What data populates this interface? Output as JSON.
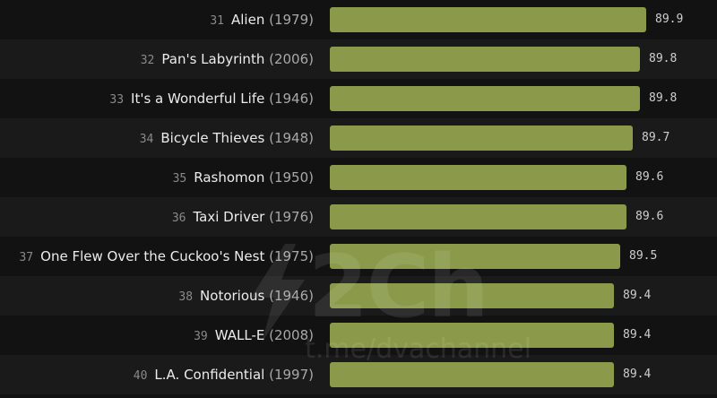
{
  "chart_data": {
    "type": "bar",
    "orientation": "horizontal",
    "bar_color": "#8a9a4a",
    "background": "#121212",
    "stripe_color": "#1a1a1a",
    "items": [
      {
        "rank": "31",
        "title": "Alien",
        "year": "(1979)",
        "value": 89.9
      },
      {
        "rank": "32",
        "title": "Pan's Labyrinth",
        "year": "(2006)",
        "value": 89.8
      },
      {
        "rank": "33",
        "title": "It's a Wonderful Life",
        "year": "(1946)",
        "value": 89.8
      },
      {
        "rank": "34",
        "title": "Bicycle Thieves",
        "year": "(1948)",
        "value": 89.7
      },
      {
        "rank": "35",
        "title": "Rashomon",
        "year": "(1950)",
        "value": 89.6
      },
      {
        "rank": "36",
        "title": "Taxi Driver",
        "year": "(1976)",
        "value": 89.6
      },
      {
        "rank": "37",
        "title": "One Flew Over the Cuckoo's Nest",
        "year": "(1975)",
        "value": 89.5
      },
      {
        "rank": "38",
        "title": "Notorious",
        "year": "(1946)",
        "value": 89.4
      },
      {
        "rank": "39",
        "title": "WALL-E",
        "year": "(2008)",
        "value": 89.4
      },
      {
        "rank": "40",
        "title": "L.A. Confidential",
        "year": "(1997)",
        "value": 89.4
      }
    ]
  },
  "watermark": {
    "logo": "2Ch",
    "url": "t.me/dvachannel"
  }
}
